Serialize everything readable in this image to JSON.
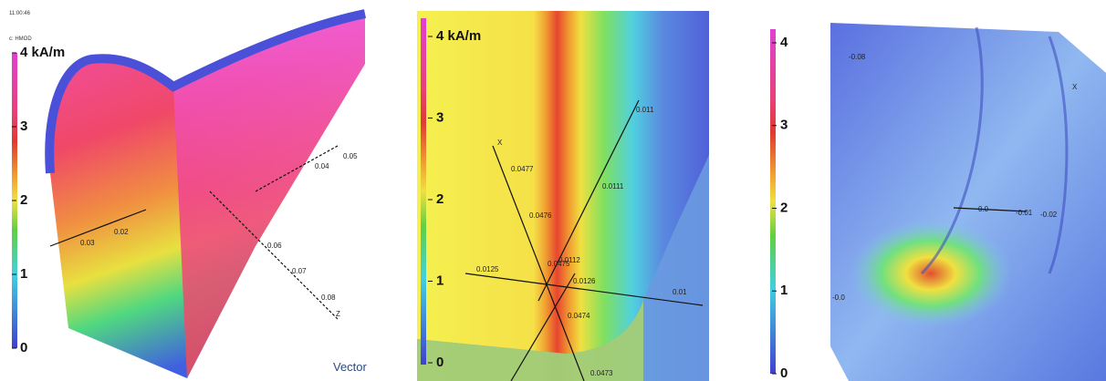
{
  "panels": [
    {
      "timestamp": "11:00:46",
      "quantity": "c: HMOD",
      "colorbar": [
        "4 kA/m",
        "3",
        "2",
        "1",
        "0"
      ],
      "axis_labels": [
        "0.03",
        "0.02",
        "0.04",
        "0.05",
        "0.06",
        "0.07",
        "0.08",
        "Z"
      ],
      "brand": "Vector"
    },
    {
      "colorbar": [
        "4 kA/m",
        "3",
        "2",
        "1",
        "0"
      ],
      "axis_labels": [
        "0.011",
        "X",
        "0.0477",
        "0.0111",
        "0.0476",
        "0.0112",
        "0.0475",
        "0.0125",
        "0.0126",
        "0.01",
        "0.0474",
        "0.0473"
      ]
    },
    {
      "colorbar": [
        "4",
        "3",
        "2",
        "1",
        "0"
      ],
      "axis_labels": [
        "-0.08",
        "X",
        "0.0",
        "-0.01",
        "-0.02",
        "-0.0"
      ]
    }
  ]
}
